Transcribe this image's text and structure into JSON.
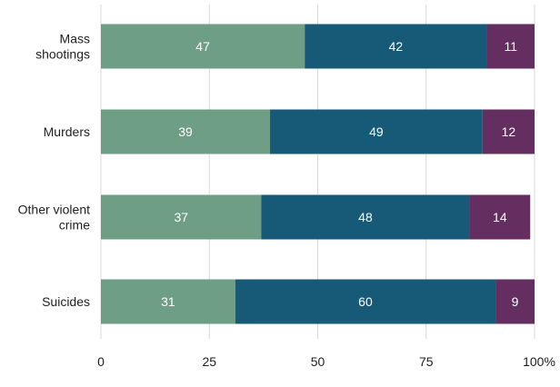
{
  "chart_data": {
    "type": "bar",
    "orientation": "horizontal",
    "stacked": true,
    "title": "",
    "xlabel": "",
    "ylabel": "",
    "xlim": [
      0,
      100
    ],
    "x_ticks": [
      {
        "value": 0,
        "label": "0"
      },
      {
        "value": 25,
        "label": "25"
      },
      {
        "value": 50,
        "label": "50"
      },
      {
        "value": 75,
        "label": "75"
      },
      {
        "value": 100,
        "label": "100%"
      }
    ],
    "grid": true,
    "legend": "none",
    "categories": [
      {
        "id": "mass-shootings",
        "lines": [
          "Mass",
          "shootings"
        ]
      },
      {
        "id": "murders",
        "lines": [
          "Murders"
        ]
      },
      {
        "id": "other-violent-crime",
        "lines": [
          "Other violent",
          "crime"
        ]
      },
      {
        "id": "suicides",
        "lines": [
          "Suicides"
        ]
      }
    ],
    "series": [
      {
        "color": "#6e9f86",
        "values": [
          47,
          39,
          37,
          31
        ]
      },
      {
        "color": "#175a78",
        "values": [
          42,
          49,
          48,
          60
        ]
      },
      {
        "color": "#652e60",
        "values": [
          11,
          12,
          14,
          9
        ]
      }
    ]
  }
}
